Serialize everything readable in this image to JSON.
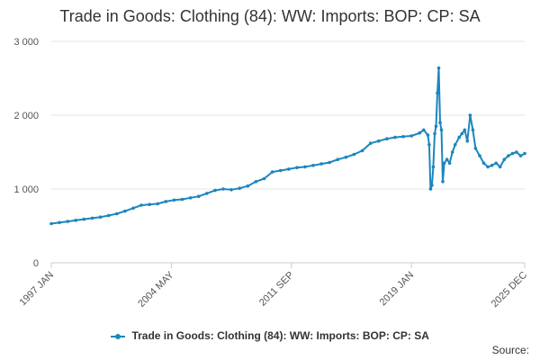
{
  "chart_data": {
    "type": "line",
    "title": "Trade in Goods: Clothing (84): WW: Imports: BOP: CP: SA",
    "xlabel": "",
    "ylabel": "",
    "x_start": "1997 JAN",
    "x_end": "2025 DEC",
    "x_ticks": [
      "1997 JAN",
      "2004 MAY",
      "2011 SEP",
      "2019 JAN",
      "2025 DEC"
    ],
    "y_ticks": [
      "0",
      "1 000",
      "2 000",
      "3 000"
    ],
    "ylim": [
      0,
      3000
    ],
    "grid": true,
    "legend_position": "bottom",
    "series": [
      {
        "name": "Trade in Goods: Clothing (84): WW: Imports: BOP: CP: SA",
        "color": "#1c86bd",
        "points": [
          [
            "1997-01",
            530
          ],
          [
            "1997-07",
            545
          ],
          [
            "1998-01",
            560
          ],
          [
            "1998-07",
            575
          ],
          [
            "1999-01",
            590
          ],
          [
            "1999-07",
            605
          ],
          [
            "2000-01",
            620
          ],
          [
            "2000-07",
            640
          ],
          [
            "2001-01",
            665
          ],
          [
            "2001-07",
            700
          ],
          [
            "2002-01",
            740
          ],
          [
            "2002-07",
            780
          ],
          [
            "2003-01",
            790
          ],
          [
            "2003-07",
            800
          ],
          [
            "2004-01",
            830
          ],
          [
            "2004-07",
            850
          ],
          [
            "2005-01",
            860
          ],
          [
            "2005-07",
            880
          ],
          [
            "2006-01",
            900
          ],
          [
            "2006-07",
            940
          ],
          [
            "2007-01",
            980
          ],
          [
            "2007-07",
            1000
          ],
          [
            "2008-01",
            990
          ],
          [
            "2008-07",
            1010
          ],
          [
            "2009-01",
            1040
          ],
          [
            "2009-07",
            1100
          ],
          [
            "2010-01",
            1140
          ],
          [
            "2010-07",
            1230
          ],
          [
            "2011-01",
            1250
          ],
          [
            "2011-07",
            1270
          ],
          [
            "2012-01",
            1290
          ],
          [
            "2012-07",
            1300
          ],
          [
            "2013-01",
            1320
          ],
          [
            "2013-07",
            1340
          ],
          [
            "2014-01",
            1360
          ],
          [
            "2014-07",
            1400
          ],
          [
            "2015-01",
            1430
          ],
          [
            "2015-07",
            1470
          ],
          [
            "2016-01",
            1520
          ],
          [
            "2016-07",
            1620
          ],
          [
            "2017-01",
            1650
          ],
          [
            "2017-07",
            1680
          ],
          [
            "2018-01",
            1700
          ],
          [
            "2018-07",
            1710
          ],
          [
            "2019-01",
            1720
          ],
          [
            "2019-07",
            1760
          ],
          [
            "2019-10",
            1800
          ],
          [
            "2020-01",
            1730
          ],
          [
            "2020-02",
            1600
          ],
          [
            "2020-03",
            1000
          ],
          [
            "2020-04",
            1050
          ],
          [
            "2020-05",
            1300
          ],
          [
            "2020-06",
            1750
          ],
          [
            "2020-07",
            1850
          ],
          [
            "2020-08",
            2300
          ],
          [
            "2020-09",
            2640
          ],
          [
            "2020-10",
            1900
          ],
          [
            "2020-11",
            1800
          ],
          [
            "2020-12",
            1100
          ],
          [
            "2021-01",
            1350
          ],
          [
            "2021-03",
            1400
          ],
          [
            "2021-05",
            1350
          ],
          [
            "2021-07",
            1500
          ],
          [
            "2021-09",
            1600
          ],
          [
            "2021-12",
            1700
          ],
          [
            "2022-02",
            1750
          ],
          [
            "2022-04",
            1800
          ],
          [
            "2022-06",
            1650
          ],
          [
            "2022-08",
            2000
          ],
          [
            "2022-10",
            1800
          ],
          [
            "2022-12",
            1550
          ],
          [
            "2023-03",
            1450
          ],
          [
            "2023-06",
            1350
          ],
          [
            "2023-09",
            1300
          ],
          [
            "2023-12",
            1320
          ],
          [
            "2024-03",
            1350
          ],
          [
            "2024-06",
            1300
          ],
          [
            "2024-09",
            1400
          ],
          [
            "2024-12",
            1450
          ],
          [
            "2025-03",
            1480
          ],
          [
            "2025-06",
            1500
          ],
          [
            "2025-09",
            1450
          ],
          [
            "2025-12",
            1480
          ]
        ]
      }
    ]
  },
  "source_label": "Source:"
}
